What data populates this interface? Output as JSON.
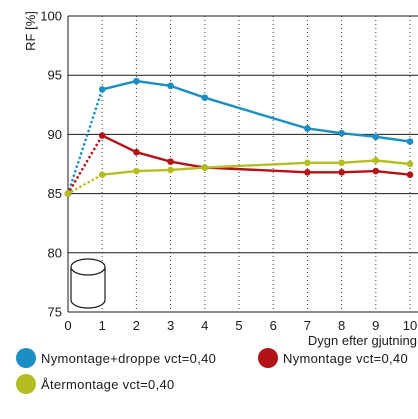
{
  "chart_data": {
    "type": "line",
    "ylabel": "RF [%]",
    "xlabel": "Dygn efter gjutning",
    "xlim": [
      0,
      10
    ],
    "ylim": [
      75,
      100
    ],
    "xticks": [
      0,
      1,
      2,
      3,
      4,
      5,
      6,
      7,
      8,
      9,
      10
    ],
    "yticks": [
      75,
      80,
      85,
      90,
      95,
      100
    ],
    "grid": {
      "horizontal": "solid",
      "vertical": "dotted"
    },
    "dotted_line_x_range": [
      0,
      1
    ],
    "legend_position": "bottom",
    "series": [
      {
        "name": "Nymontage+droppe vct=0,40",
        "color": "#1b8ec3",
        "x": [
          0,
          1,
          2,
          3,
          4,
          7,
          8,
          9,
          10
        ],
        "y": [
          85.0,
          93.8,
          94.5,
          94.1,
          93.1,
          90.5,
          90.1,
          89.8,
          89.4
        ]
      },
      {
        "name": "Nymontage vct=0,40",
        "color": "#b31217",
        "x": [
          0,
          1,
          2,
          3,
          4,
          7,
          8,
          9,
          10
        ],
        "y": [
          85.0,
          89.9,
          88.5,
          87.7,
          87.2,
          86.8,
          86.8,
          86.9,
          86.6
        ]
      },
      {
        "name": "Återmontage vct=0,40",
        "color": "#b5bd21",
        "x": [
          0,
          1,
          2,
          3,
          4,
          7,
          8,
          9,
          10
        ],
        "y": [
          85.0,
          86.6,
          86.9,
          87.0,
          87.2,
          87.6,
          87.6,
          87.8,
          87.5
        ]
      }
    ]
  },
  "icons": {
    "plot_symbol": "cylinder-icon"
  }
}
